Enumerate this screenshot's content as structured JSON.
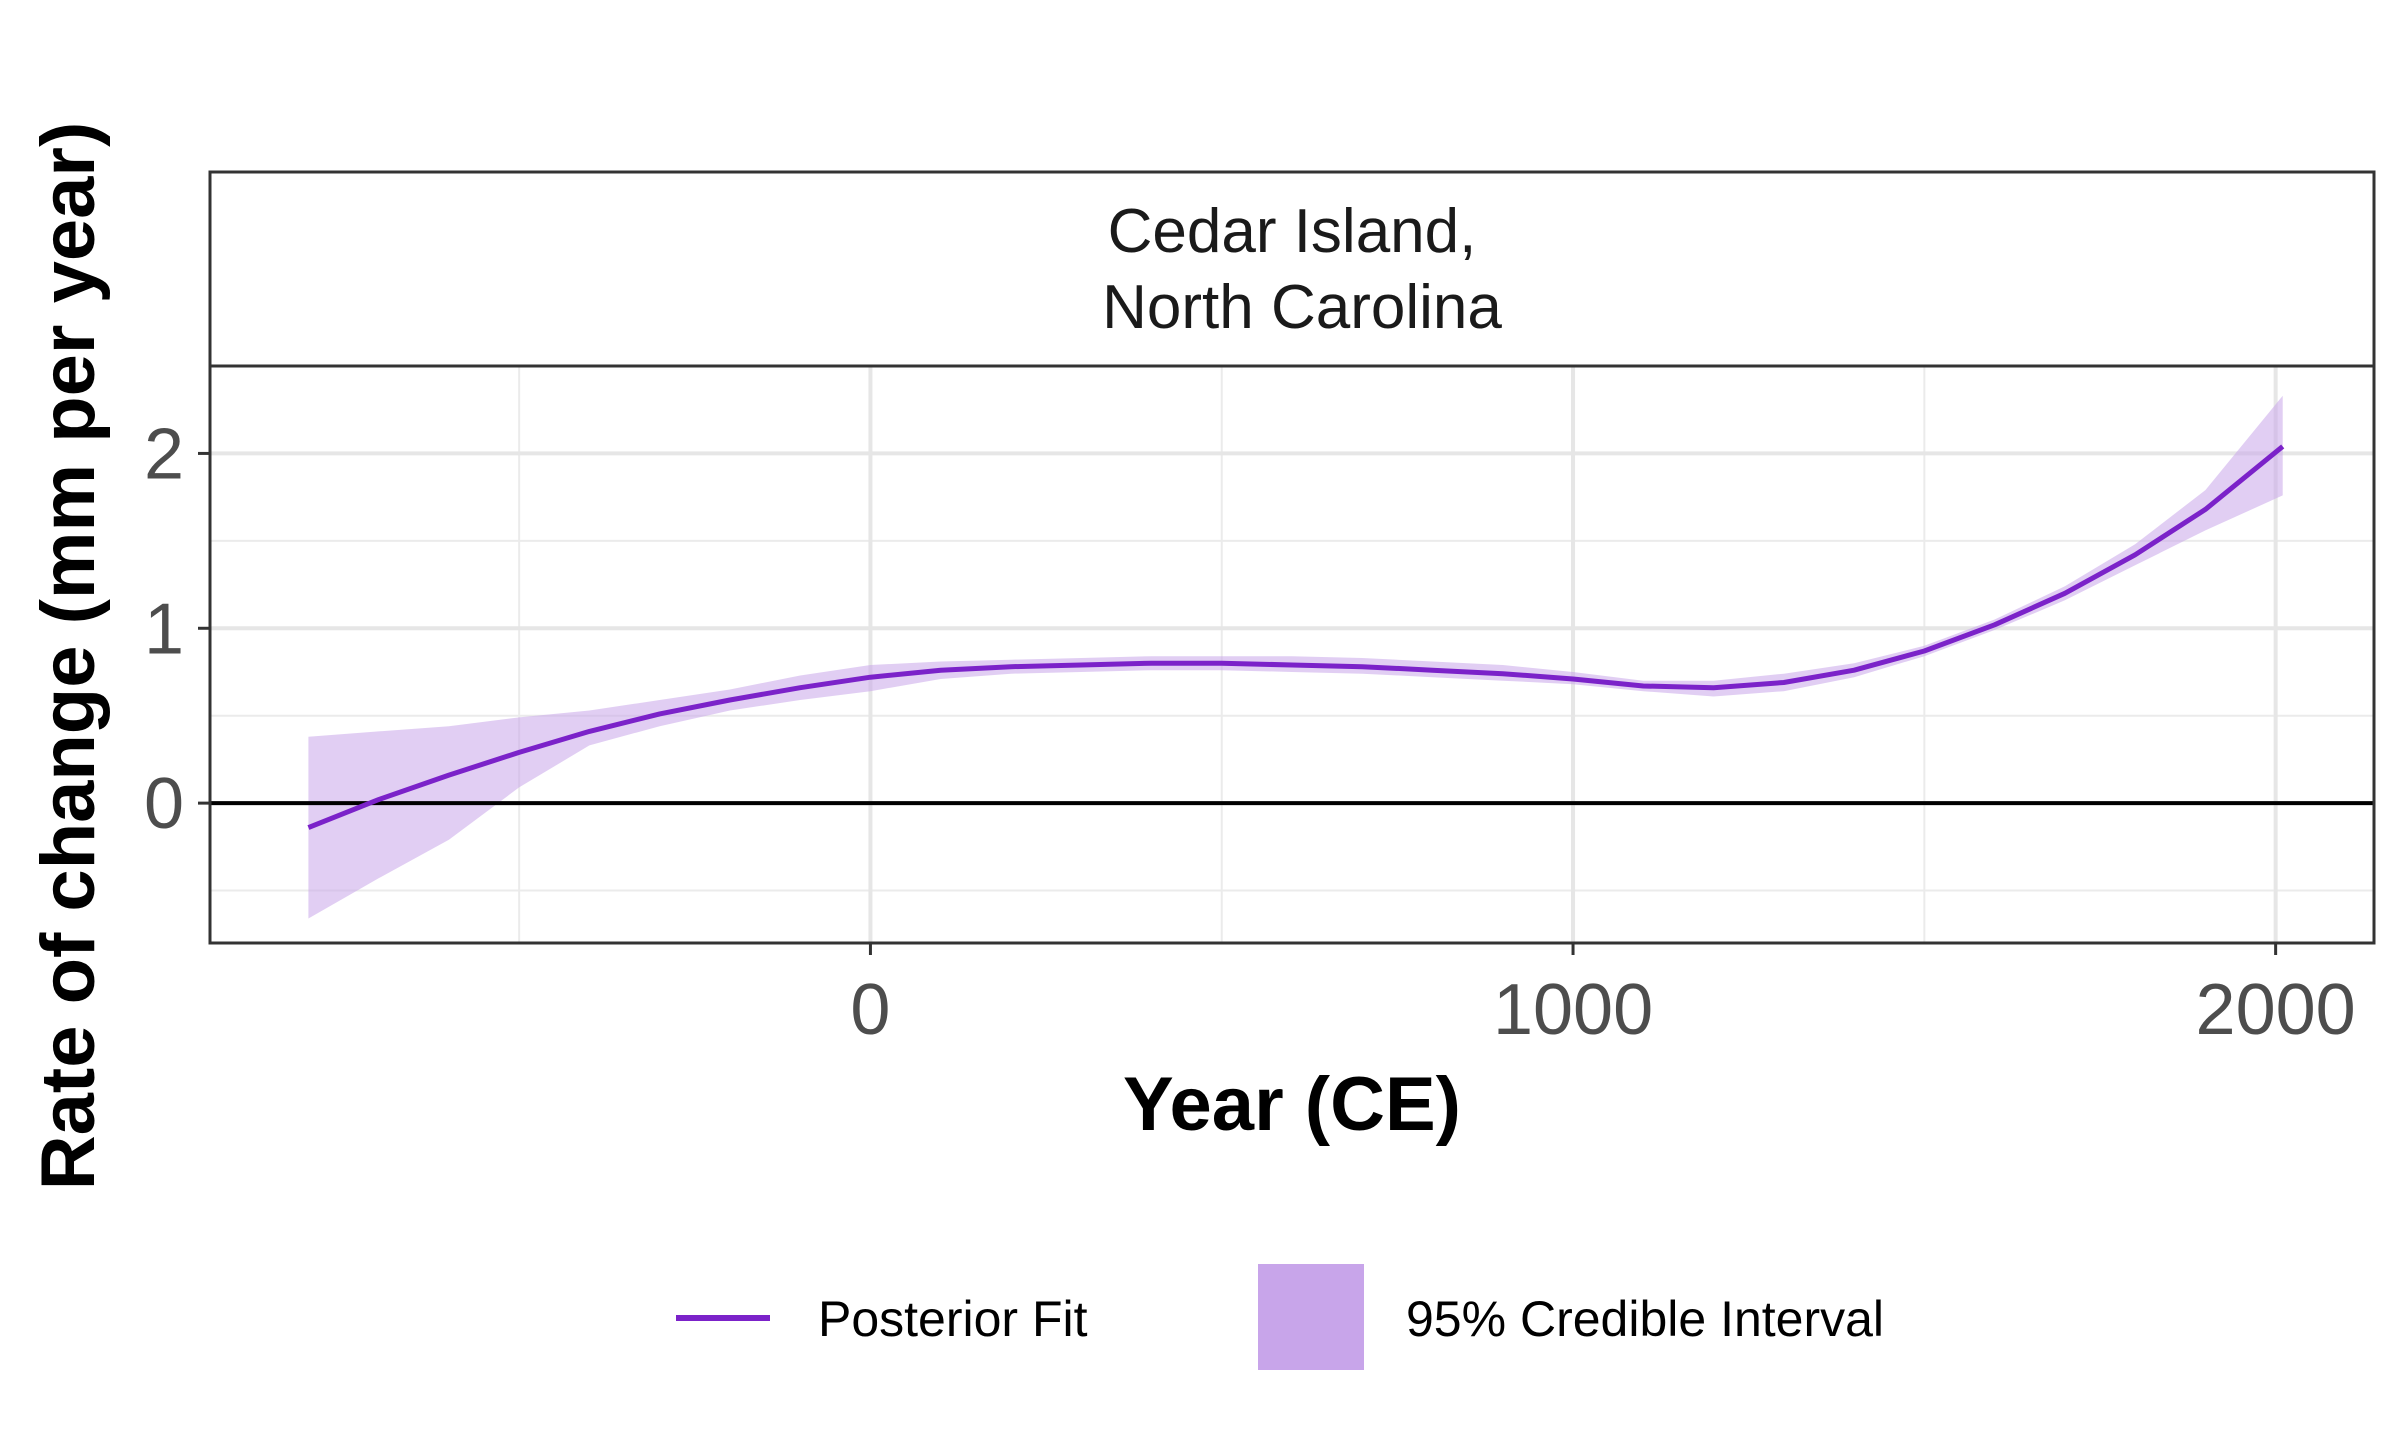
{
  "chart_data": {
    "type": "line",
    "panel_title": [
      "Cedar Island,",
      "North Carolina"
    ],
    "xlabel": "Year (CE)",
    "ylabel": "Rate of change (mm per year)",
    "xlim": [
      -940,
      2140
    ],
    "ylim": [
      -0.8,
      2.5
    ],
    "x_ticks": [
      0,
      1000,
      2000
    ],
    "x_tick_labels": [
      "0",
      "1000",
      "2000"
    ],
    "y_ticks": [
      0,
      1,
      2
    ],
    "y_tick_labels": [
      "0",
      "1",
      "2"
    ],
    "x_minor": [
      -500,
      500,
      1500
    ],
    "y_minor": [
      -0.5,
      0.5,
      1.5
    ],
    "grid": true,
    "hline_y": 0,
    "series": [
      {
        "name": "Posterior Fit",
        "color": "#7B22C9",
        "x": [
          -800,
          -700,
          -600,
          -500,
          -400,
          -300,
          -200,
          -100,
          0,
          100,
          200,
          300,
          400,
          500,
          600,
          700,
          800,
          900,
          1000,
          1100,
          1200,
          1300,
          1400,
          1500,
          1600,
          1700,
          1800,
          1900,
          2010
        ],
        "y": [
          -0.14,
          0.02,
          0.16,
          0.29,
          0.41,
          0.51,
          0.59,
          0.66,
          0.72,
          0.76,
          0.78,
          0.79,
          0.8,
          0.8,
          0.79,
          0.78,
          0.76,
          0.74,
          0.71,
          0.67,
          0.66,
          0.69,
          0.76,
          0.87,
          1.02,
          1.2,
          1.42,
          1.68,
          2.04
        ]
      }
    ],
    "band": {
      "name": "95% Credible Interval",
      "color": "#C8A5EA",
      "x": [
        -800,
        -700,
        -600,
        -500,
        -400,
        -300,
        -200,
        -100,
        0,
        100,
        200,
        300,
        400,
        500,
        600,
        700,
        800,
        900,
        1000,
        1100,
        1200,
        1300,
        1400,
        1500,
        1600,
        1700,
        1800,
        1900,
        2010
      ],
      "lower": [
        -0.66,
        -0.43,
        -0.21,
        0.09,
        0.33,
        0.44,
        0.53,
        0.59,
        0.64,
        0.71,
        0.74,
        0.75,
        0.76,
        0.76,
        0.75,
        0.74,
        0.72,
        0.7,
        0.68,
        0.64,
        0.61,
        0.64,
        0.72,
        0.84,
        0.99,
        1.16,
        1.36,
        1.56,
        1.76
      ],
      "upper": [
        0.38,
        0.41,
        0.44,
        0.49,
        0.53,
        0.59,
        0.65,
        0.73,
        0.79,
        0.81,
        0.82,
        0.83,
        0.84,
        0.84,
        0.84,
        0.83,
        0.81,
        0.79,
        0.75,
        0.7,
        0.7,
        0.74,
        0.8,
        0.9,
        1.05,
        1.24,
        1.48,
        1.79,
        2.33
      ]
    },
    "legend": {
      "position": "bottom",
      "entries": [
        "Posterior Fit",
        "95% Credible Interval"
      ]
    }
  }
}
